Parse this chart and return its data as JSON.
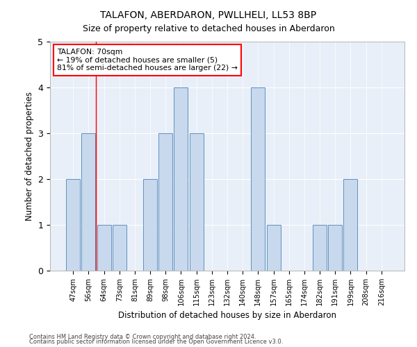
{
  "title": "TALAFON, ABERDARON, PWLLHELI, LL53 8BP",
  "subtitle": "Size of property relative to detached houses in Aberdaron",
  "xlabel": "Distribution of detached houses by size in Aberdaron",
  "ylabel": "Number of detached properties",
  "categories": [
    "47sqm",
    "56sqm",
    "64sqm",
    "73sqm",
    "81sqm",
    "89sqm",
    "98sqm",
    "106sqm",
    "115sqm",
    "123sqm",
    "132sqm",
    "140sqm",
    "148sqm",
    "157sqm",
    "165sqm",
    "174sqm",
    "182sqm",
    "191sqm",
    "199sqm",
    "208sqm",
    "216sqm"
  ],
  "values": [
    2,
    3,
    1,
    1,
    0,
    2,
    3,
    4,
    3,
    0,
    0,
    0,
    4,
    1,
    0,
    0,
    1,
    1,
    2,
    0,
    0
  ],
  "bar_color": "#c8d9ed",
  "bar_edge_color": "#6090be",
  "background_color": "#e8eff8",
  "red_line_x": 1.5,
  "annotation_title": "TALAFON: 70sqm",
  "annotation_line1": "← 19% of detached houses are smaller (5)",
  "annotation_line2": "81% of semi-detached houses are larger (22) →",
  "footer1": "Contains HM Land Registry data © Crown copyright and database right 2024.",
  "footer2": "Contains public sector information licensed under the Open Government Licence v3.0.",
  "ylim": [
    0,
    5
  ],
  "yticks": [
    0,
    1,
    2,
    3,
    4,
    5
  ]
}
